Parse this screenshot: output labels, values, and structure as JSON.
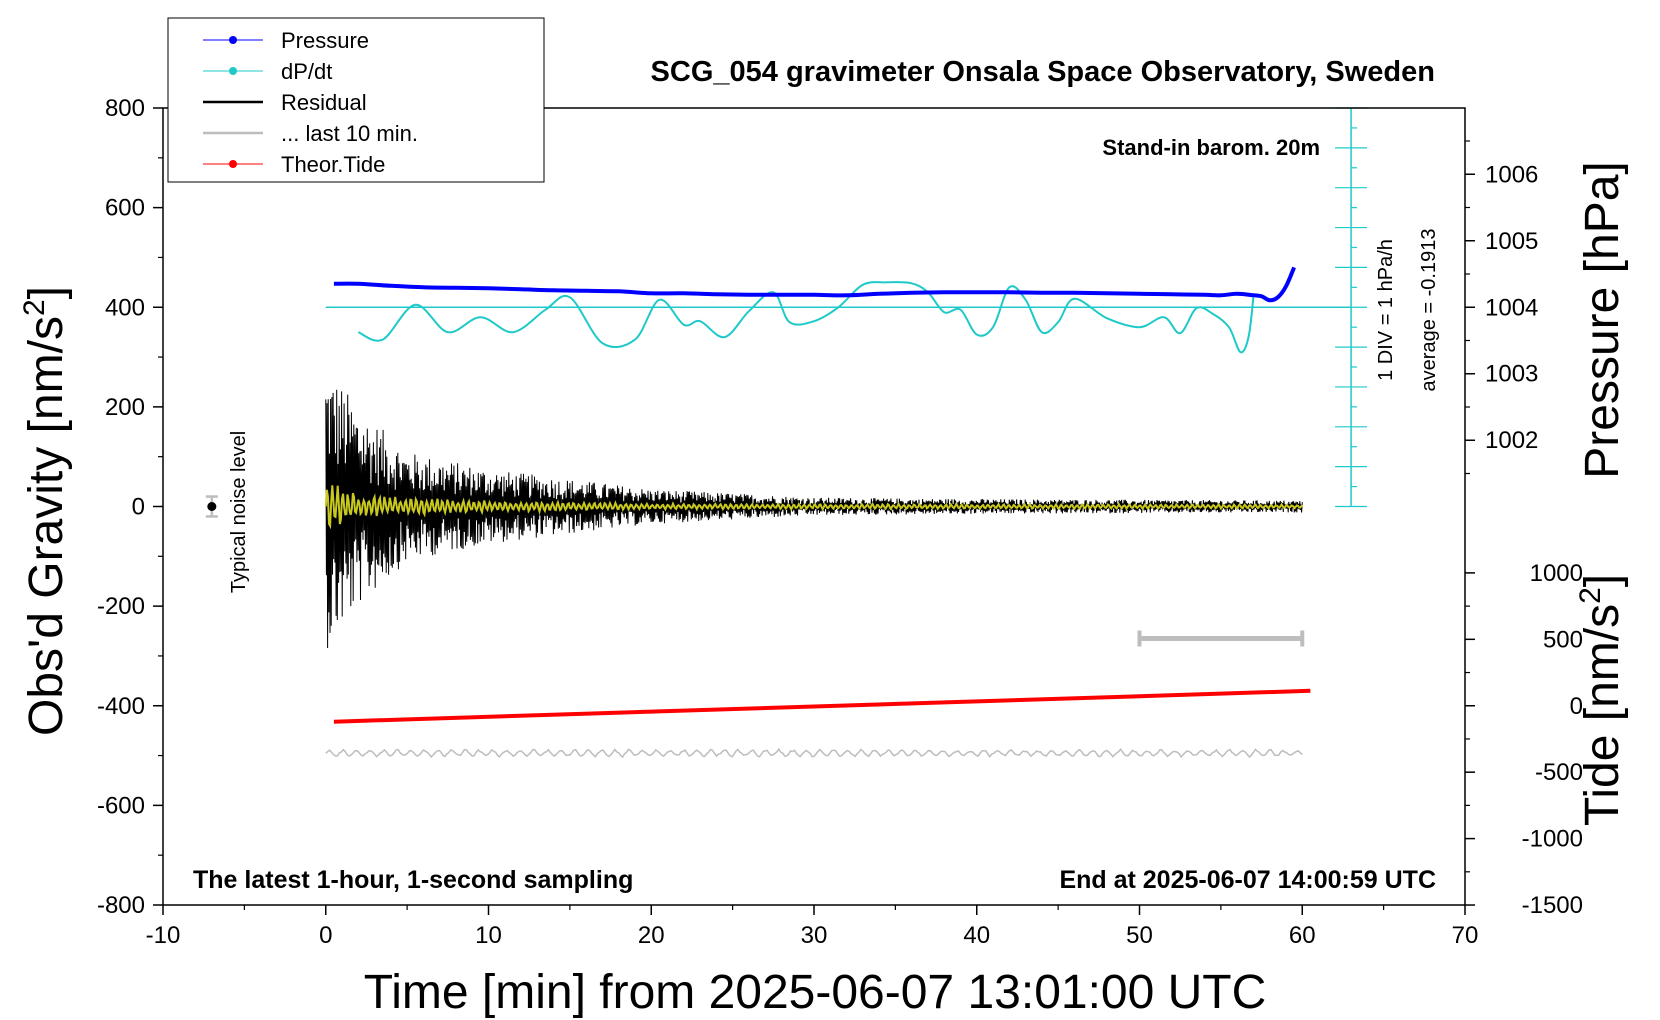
{
  "chart_data": {
    "type": "line",
    "title": "SCG_054 gravimeter Onsala Space Observatory, Sweden",
    "xlabel": "Time [min] from 2025-06-07 13:01:00 UTC",
    "ylabel_left": "Obs'd Gravity [nm/s",
    "ylabel_left_sup": "2",
    "ylabel_left_end": "]",
    "ylabel_right_top": "Pressure [hPa]",
    "ylabel_right_bottom": "Tide [nm/s",
    "ylabel_right_bottom_sup": "2",
    "ylabel_right_bottom_end": "]",
    "xlim": [
      -10,
      70
    ],
    "ylim": [
      -800,
      800
    ],
    "x_ticks": [
      "-10",
      "0",
      "10",
      "20",
      "30",
      "40",
      "50",
      "60",
      "70"
    ],
    "y_ticks": [
      "800",
      "600",
      "400",
      "200",
      "0",
      "-200",
      "-400",
      "-600",
      "-800"
    ],
    "pressure_axis": {
      "ticks": [
        "1006",
        "1005",
        "1004",
        "1003",
        "1002"
      ],
      "values": [
        1006,
        1005,
        1004,
        1003,
        1002
      ],
      "gravity_at_1004": 400,
      "gravity_per_hpa": 133.5
    },
    "tide_axis": {
      "ticks": [
        "1000",
        "500",
        "0",
        "-500",
        "-1000",
        "-1500"
      ],
      "values": [
        1000,
        500,
        0,
        -500,
        -1000,
        -1500
      ],
      "gravity_at_0": -400,
      "gravity_per_unit": 0.2667
    },
    "annotations": {
      "stand_in": "Stand-in barom. 20m",
      "latest": "The latest 1-hour, 1-second sampling",
      "end_at": "End at 2025-06-07 14:00:59 UTC",
      "noise_label": "Typical noise level",
      "div_label": "1 DIV = 1 hPa/h",
      "average_label": "average = -0.1913"
    },
    "legend_position": "top-left",
    "legend": [
      {
        "label": "Pressure",
        "color": "#0000ff",
        "marker": "dot"
      },
      {
        "label": "dP/dt",
        "color": "#1fc9c9",
        "marker": "dot"
      },
      {
        "label": "Residual",
        "color": "#000000",
        "marker": "line"
      },
      {
        "label": "... last 10 min.",
        "color": "#bdbdbd",
        "marker": "line"
      },
      {
        "label": "Theor.Tide",
        "color": "#ff0000",
        "marker": "dot"
      }
    ],
    "colors": {
      "pressure": "#0000ff",
      "dpdt": "#1fc9c9",
      "residual": "#000000",
      "filtered": "#c8c81e",
      "last10": "#bdbdbd",
      "tide": "#ff0000"
    },
    "series": [
      {
        "name": "Pressure",
        "x": [
          0.5,
          2,
          4,
          6,
          8,
          10,
          12,
          14,
          16,
          18,
          20,
          22,
          24,
          26,
          28,
          30,
          32,
          34,
          36,
          38,
          40,
          42,
          44,
          46,
          48,
          50,
          52,
          54,
          55,
          56,
          57,
          57.5,
          58,
          58.5,
          59,
          59.5
        ],
        "y": [
          447,
          447,
          443,
          440,
          439,
          438,
          436,
          434,
          433,
          432,
          428,
          428,
          426,
          425,
          425,
          425,
          424,
          427,
          429,
          430,
          430,
          430,
          429,
          429,
          428,
          427,
          426,
          425,
          424,
          427,
          424,
          422,
          414,
          420,
          442,
          480
        ]
      },
      {
        "name": "dP/dt",
        "x": [
          2,
          3.5,
          5.5,
          7.5,
          9.5,
          11.5,
          13.5,
          15,
          17,
          19,
          20.5,
          22,
          23,
          24.5,
          26,
          27.5,
          28.5,
          30,
          31.5,
          33,
          34.5,
          36,
          37,
          38,
          39,
          40,
          41,
          42,
          43,
          44,
          45,
          46,
          48,
          50,
          51.5,
          52.5,
          53.5,
          54.5,
          55.5,
          56.2,
          56.7,
          57
        ],
        "y": [
          350,
          335,
          405,
          350,
          380,
          350,
          395,
          420,
          328,
          335,
          415,
          365,
          372,
          340,
          392,
          430,
          370,
          372,
          400,
          445,
          450,
          448,
          430,
          390,
          395,
          345,
          360,
          440,
          415,
          350,
          370,
          417,
          378,
          360,
          380,
          348,
          398,
          387,
          360,
          310,
          340,
          420
        ]
      },
      {
        "name": "Theor.Tide",
        "x": [
          0.5,
          60.5
        ],
        "y": [
          -432,
          -370
        ]
      },
      {
        "name": "Residual",
        "x_range": [
          0,
          60
        ],
        "center": 0,
        "envelope": [
          [
            0,
            290
          ],
          [
            2,
            200
          ],
          [
            5,
            110
          ],
          [
            10,
            75
          ],
          [
            15,
            55
          ],
          [
            20,
            35
          ],
          [
            30,
            18
          ],
          [
            40,
            15
          ],
          [
            60,
            12
          ]
        ]
      },
      {
        "name": "Filtered residual",
        "x_range": [
          0,
          60
        ],
        "center": 0,
        "envelope": [
          [
            0,
            60
          ],
          [
            2,
            25
          ],
          [
            10,
            12
          ],
          [
            20,
            6
          ],
          [
            60,
            4
          ]
        ]
      },
      {
        "name": "... last 10 min.",
        "x_range": [
          0,
          60
        ],
        "center": -495,
        "amplitude": 8
      }
    ],
    "noise_bar": {
      "x": -7,
      "center": 0,
      "half_range": 20
    },
    "last10_bar": {
      "x_start": 50,
      "x_end": 60,
      "y": -265
    },
    "dpdt_scale_bar": {
      "x": 63,
      "y_bottom": 0,
      "y_top": 800
    }
  }
}
